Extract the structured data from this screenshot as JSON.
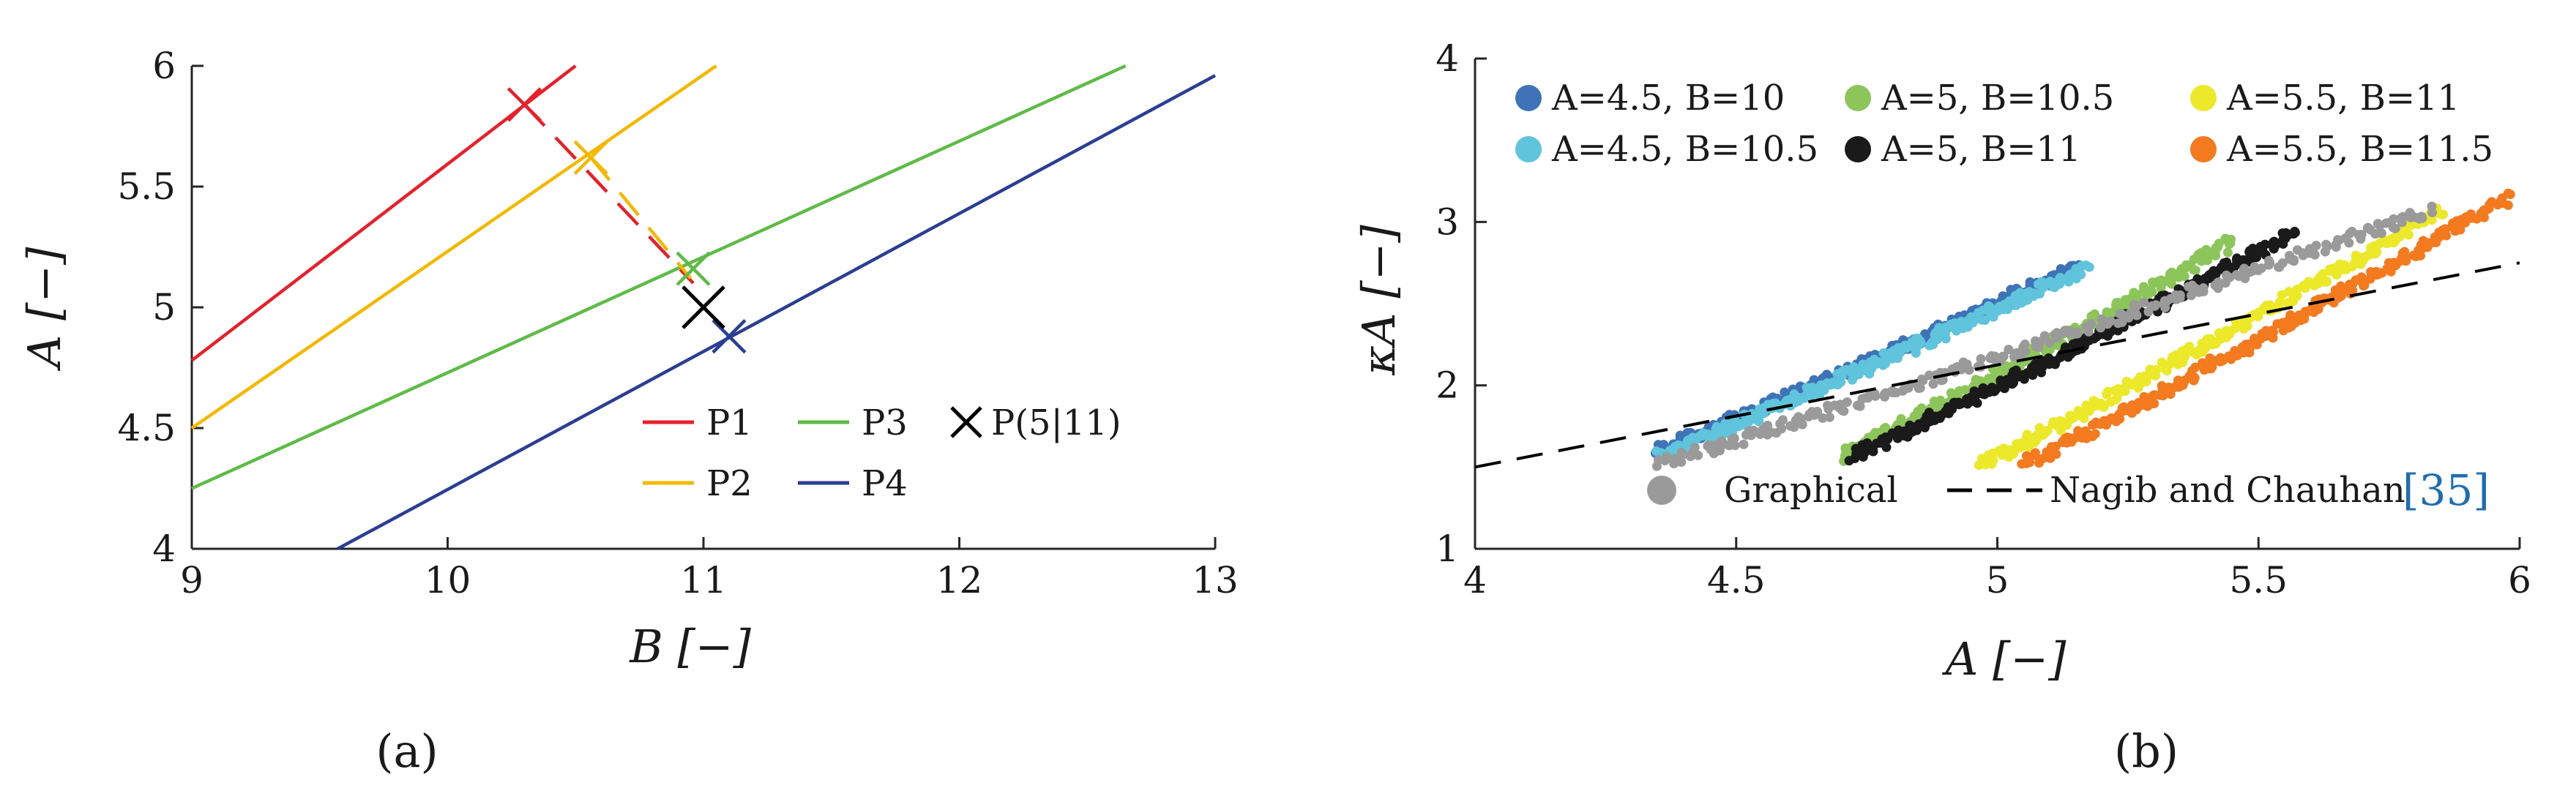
{
  "chart_data": [
    {
      "type": "line",
      "panel_label": "(a)",
      "xlabel": "B [−]",
      "ylabel": "A [−]",
      "xlim": [
        9,
        13
      ],
      "ylim": [
        4,
        6
      ],
      "xticks": [
        "9",
        "10",
        "11",
        "12",
        "13"
      ],
      "yticks": [
        "4",
        "4.5",
        "5",
        "5.5",
        "6"
      ],
      "grid": false,
      "legend_position": "bottom-right",
      "series": [
        {
          "name": "P1",
          "color": "#e8202a",
          "x": [
            9,
            10.5
          ],
          "y": [
            4.78,
            6.0
          ],
          "marker": {
            "x": 10.3,
            "y": 5.84
          }
        },
        {
          "name": "P2",
          "color": "#f5b800",
          "x": [
            9,
            11.05
          ],
          "y": [
            4.5,
            6.0
          ],
          "marker": {
            "x": 10.56,
            "y": 5.62
          }
        },
        {
          "name": "P3",
          "color": "#5dbb46",
          "x": [
            9,
            12.65
          ],
          "y": [
            4.25,
            6.0
          ],
          "marker": {
            "x": 10.96,
            "y": 5.16
          }
        },
        {
          "name": "P4",
          "color": "#2a3f94",
          "x": [
            9.57,
            13
          ],
          "y": [
            4.0,
            5.96
          ],
          "marker": {
            "x": 11.1,
            "y": 4.88
          }
        }
      ],
      "dashed_connectors": [
        {
          "color": "#e8202a",
          "x": [
            10.3,
            10.96
          ],
          "y": [
            5.84,
            5.1
          ]
        },
        {
          "color": "#f5b800",
          "x": [
            10.56,
            10.95
          ],
          "y": [
            5.62,
            5.12
          ]
        }
      ],
      "point": {
        "name": "P(5|11)",
        "x": 11,
        "y": 5,
        "color": "#000000",
        "marker": "cross"
      }
    },
    {
      "type": "scatter",
      "panel_label": "(b)",
      "xlabel": "A [−]",
      "ylabel": "κA [−]",
      "xlim": [
        4,
        6
      ],
      "ylim": [
        1,
        4
      ],
      "xticks": [
        "4",
        "4.5",
        "5",
        "5.5",
        "6"
      ],
      "yticks": [
        "1",
        "2",
        "3",
        "4"
      ],
      "grid": false,
      "legend_position": "top",
      "series": [
        {
          "name": "A=4.5, B=10",
          "color": "#3e73b8",
          "x_range": [
            4.35,
            5.15
          ],
          "y_range": [
            1.6,
            2.72
          ]
        },
        {
          "name": "A=4.5, B=10.5",
          "color": "#5fc4dc",
          "x_range": [
            4.35,
            5.17
          ],
          "y_range": [
            1.57,
            2.72
          ]
        },
        {
          "name": "A=5, B=10.5",
          "color": "#8cc65a",
          "x_range": [
            4.7,
            5.45
          ],
          "y_range": [
            1.57,
            2.88
          ]
        },
        {
          "name": "A=5, B=11",
          "color": "#1a1a1a",
          "x_range": [
            4.72,
            5.57
          ],
          "y_range": [
            1.57,
            2.93
          ]
        },
        {
          "name": "A=5.5, B=11",
          "color": "#ece92a",
          "x_range": [
            4.97,
            5.85
          ],
          "y_range": [
            1.52,
            3.07
          ]
        },
        {
          "name": "A=5.5, B=11.5",
          "color": "#f47a20",
          "x_range": [
            5.05,
            5.98
          ],
          "y_range": [
            1.52,
            3.15
          ]
        },
        {
          "name": "Graphical",
          "color": "#9a9a9a",
          "x_range": [
            4.35,
            5.83
          ],
          "y_range": [
            1.52,
            3.07
          ]
        }
      ],
      "reference_line": {
        "name": "Nagib and Chauhan",
        "citation": "[35]",
        "style": "dashed",
        "color": "#000000",
        "x": [
          4,
          6
        ],
        "y": [
          1.5,
          2.75
        ]
      }
    }
  ]
}
